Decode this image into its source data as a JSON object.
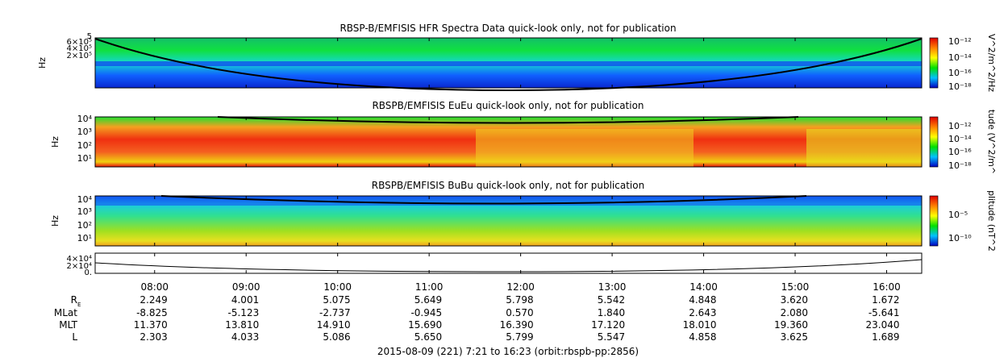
{
  "footer": {
    "title": "2015-08-09 (221) 7:21 to 16:23 (orbit:rbspb-pp:2856)",
    "row_labels": [
      "R",
      "MLat",
      "MLT",
      "L"
    ],
    "rows": [
      [
        "2.249",
        "4.001",
        "5.075",
        "5.649",
        "5.798",
        "5.542",
        "4.848",
        "3.620",
        "1.672"
      ],
      [
        "-8.825",
        "-5.123",
        "-2.737",
        "-0.945",
        "0.570",
        "1.840",
        "2.643",
        "2.080",
        "-5.641"
      ],
      [
        "11.370",
        "13.810",
        "14.910",
        "15.690",
        "16.390",
        "17.120",
        "18.010",
        "19.360",
        "23.040"
      ],
      [
        "2.303",
        "4.033",
        "5.086",
        "5.650",
        "5.799",
        "5.547",
        "4.858",
        "3.625",
        "1.689"
      ]
    ],
    "r_subscript": "E"
  },
  "chart_data": [
    {
      "type": "heatmap",
      "title": "RBSP-B/EMFISIS  HFR Spectra Data quick-look only, not for publication",
      "ylabel": "Hz",
      "yticks": [
        "6×10⁵",
        "4×10⁵",
        "2×10⁵"
      ],
      "ytick_extra": "5",
      "colorbar_label": "V^2/m^2/Hz",
      "colorbar_ticks": [
        "10⁻¹²",
        "10⁻¹⁴",
        "10⁻¹⁶",
        "10⁻¹⁸"
      ]
    },
    {
      "type": "heatmap",
      "title": "RBSPB/EMFISIS  EuEu quick-look only, not for publication",
      "ylabel": "Hz",
      "yticks": [
        "10⁴",
        "10³",
        "10²",
        "10¹"
      ],
      "colorbar_label": "tude (V^2/m^",
      "colorbar_ticks": [
        "10⁻¹²",
        "10⁻¹⁴",
        "10⁻¹⁶",
        "10⁻¹⁸"
      ]
    },
    {
      "type": "heatmap",
      "title": "RBSPB/EMFISIS  BuBu quick-look only, not for publication",
      "ylabel": "Hz",
      "yticks": [
        "10⁴",
        "10³",
        "10²",
        "10¹"
      ],
      "colorbar_label": "plitude (nT^2",
      "colorbar_ticks": [
        "10⁻⁵",
        "10⁻¹⁰"
      ]
    },
    {
      "type": "line",
      "title": "",
      "yticks": [
        "4×10⁴",
        "2×10⁴",
        "0."
      ],
      "xlabel": "2015-08-09 (221) 7:21 to 16:23 (orbit:rbspb-pp:2856)",
      "xticks": [
        "08:00",
        "09:00",
        "10:00",
        "11:00",
        "12:00",
        "13:00",
        "14:00",
        "15:00",
        "16:00"
      ]
    }
  ]
}
